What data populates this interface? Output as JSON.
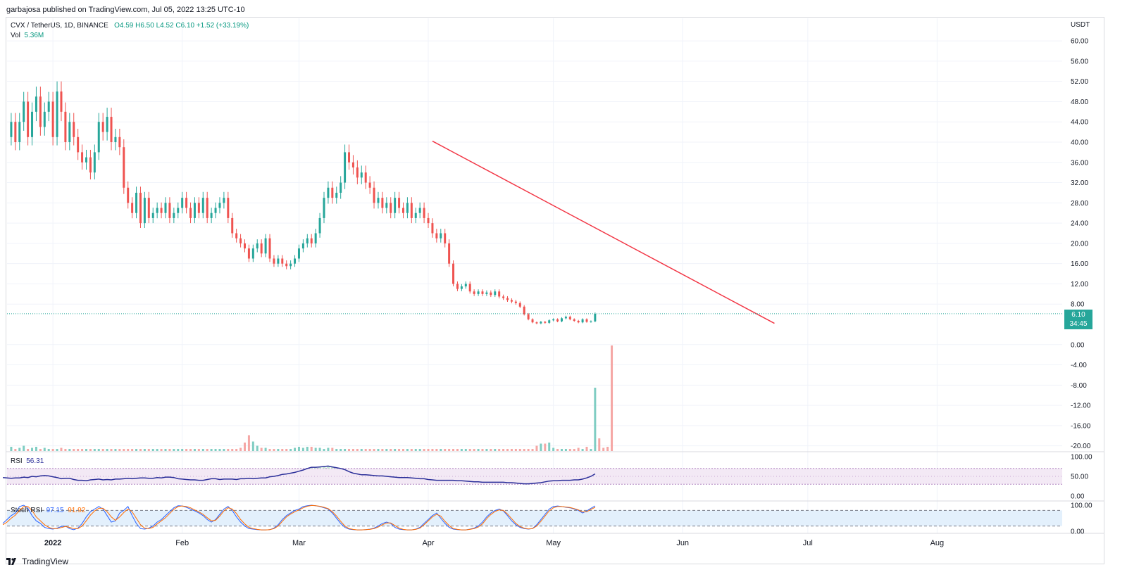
{
  "publish_line": "garbajosa published on TradingView.com, Jul 05, 2022 13:25 UTC-10",
  "legend": {
    "symbol": "CVX / TetherUS, 1D, BINANCE",
    "ohlc": "O4.59  H6.50  L4.52  C6.10  +1.52 (+33.19%)",
    "vol_label": "Vol",
    "vol_value": "5.36M"
  },
  "rsi_legend": {
    "label": "RSI",
    "value": "56.31"
  },
  "srsi_legend": {
    "label": "Stoch RSI",
    "k": "97.15",
    "d": "91.92"
  },
  "price_badge": {
    "price": "6.10",
    "countdown": "34:45"
  },
  "brand": "TradingView",
  "colors": {
    "up": "#26a69a",
    "down": "#ef5350",
    "trendline": "#f23645",
    "rsi": "#2a2e99",
    "stoch_k": "#2962ff",
    "stoch_d": "#ff6d00"
  },
  "chart_data": [
    {
      "type": "candlestick",
      "title": "CVX / TetherUS, 1D, BINANCE",
      "yunit": "USDT",
      "y_ticks": [
        "60.00",
        "56.00",
        "52.00",
        "48.00",
        "44.00",
        "40.00",
        "36.00",
        "32.00",
        "28.00",
        "24.00",
        "20.00",
        "16.00",
        "12.00",
        "8.00",
        "0.00",
        "-4.00",
        "-8.00",
        "-12.00",
        "-16.00",
        "-20.00"
      ],
      "ylim": [
        -20,
        64
      ],
      "x_ticks": [
        "2022",
        "Feb",
        "Mar",
        "Apr",
        "May",
        "Jun",
        "Jul",
        "Aug"
      ],
      "x_range": [
        "2021-12-21",
        "2022-08-31"
      ],
      "start_date": "2021-12-22",
      "closes": [
        44,
        40,
        44,
        48,
        41,
        46,
        49,
        43,
        46,
        48,
        41,
        50,
        46,
        40,
        44,
        41,
        38,
        36,
        37,
        34,
        38,
        44,
        42,
        45,
        40,
        41,
        39,
        31,
        28,
        26,
        30,
        24,
        29,
        25,
        26,
        27,
        26,
        28,
        25,
        26,
        27,
        29,
        27,
        25,
        28,
        26,
        29,
        25,
        26,
        27,
        28,
        29,
        25,
        22,
        21,
        20,
        19,
        17,
        19,
        20,
        18,
        21,
        17,
        16,
        17,
        16,
        15.5,
        16,
        17,
        19,
        20,
        21,
        20,
        22,
        25,
        29,
        31,
        29,
        30,
        32,
        38,
        36,
        35,
        33,
        34,
        32,
        31,
        28,
        29,
        27,
        28,
        26,
        29,
        27,
        26,
        28,
        25,
        26,
        27,
        25,
        24,
        22,
        21,
        22,
        20,
        16,
        12,
        11,
        11.5,
        12,
        10.5,
        10,
        10.5,
        10,
        10.3,
        9.8,
        10.5,
        9.5,
        9.2,
        8.8,
        8.5,
        8.2,
        7.5,
        6,
        5,
        4.4,
        4.2,
        4.5,
        4.3,
        4.8,
        5,
        4.6,
        5.2,
        5.5,
        5,
        4.7,
        4.4,
        5,
        4.5,
        4.6,
        6.1
      ],
      "trendline": [
        {
          "date": "2022-04-02",
          "price": 40.2
        },
        {
          "date": "2022-06-23",
          "price": 4.2
        }
      ],
      "last_price": "6.10"
    },
    {
      "type": "bar",
      "title": "Vol",
      "unit": "relative volume",
      "note": "volume bars share the x axis; values relative to the largest bar (= 1.0)",
      "values": [
        0.04,
        0.02,
        0.03,
        0.05,
        0.02,
        0.03,
        0.04,
        0.02,
        0.03,
        0.02,
        0.02,
        0.02,
        0.03,
        0.02,
        0.02,
        0.02,
        0.02,
        0.02,
        0.02,
        0.02,
        0.02,
        0.02,
        0.02,
        0.02,
        0.02,
        0.02,
        0.02,
        0.02,
        0.02,
        0.02,
        0.02,
        0.02,
        0.02,
        0.02,
        0.02,
        0.02,
        0.02,
        0.02,
        0.02,
        0.02,
        0.02,
        0.02,
        0.02,
        0.02,
        0.02,
        0.02,
        0.02,
        0.02,
        0.02,
        0.02,
        0.02,
        0.02,
        0.02,
        0.02,
        0.02,
        0.03,
        0.08,
        0.15,
        0.09,
        0.05,
        0.03,
        0.03,
        0.02,
        0.02,
        0.02,
        0.02,
        0.02,
        0.02,
        0.03,
        0.04,
        0.03,
        0.04,
        0.04,
        0.03,
        0.03,
        0.02,
        0.03,
        0.03,
        0.02,
        0.02,
        0.02,
        0.02,
        0.02,
        0.02,
        0.02,
        0.02,
        0.02,
        0.02,
        0.02,
        0.02,
        0.02,
        0.02,
        0.02,
        0.02,
        0.02,
        0.02,
        0.02,
        0.02,
        0.02,
        0.02,
        0.02,
        0.02,
        0.02,
        0.02,
        0.02,
        0.02,
        0.02,
        0.02,
        0.02,
        0.02,
        0.02,
        0.02,
        0.02,
        0.02,
        0.02,
        0.02,
        0.02,
        0.02,
        0.02,
        0.02,
        0.02,
        0.02,
        0.02,
        0.02,
        0.02,
        0.02,
        0.05,
        0.07,
        0.07,
        0.08,
        0.03,
        0.02,
        0.02,
        0.02,
        0.02,
        0.02,
        0.03,
        0.02,
        0.04,
        0.02,
        0.6,
        0.12,
        0.03,
        0.04,
        1.0
      ]
    },
    {
      "type": "line",
      "title": "RSI",
      "y_ticks": [
        "100.00",
        "50.00",
        "0.00"
      ],
      "ylim": [
        0,
        100
      ],
      "bands": [
        30,
        70
      ],
      "values": [
        47,
        46,
        45,
        46,
        46,
        48,
        47,
        50,
        49,
        51,
        52,
        51,
        49,
        47,
        44,
        45,
        45,
        42,
        40,
        40,
        39,
        41,
        42,
        43,
        41,
        42,
        41,
        43,
        43,
        44,
        45,
        44,
        45,
        46,
        46,
        45,
        45,
        47,
        46,
        48,
        48,
        47,
        44,
        43,
        42,
        41,
        41,
        40,
        40,
        42,
        44,
        44,
        42,
        43,
        43,
        43,
        42,
        44,
        44,
        45,
        44,
        45,
        46,
        46,
        49,
        50,
        52,
        55,
        56,
        58,
        60,
        63,
        66,
        70,
        73,
        73,
        74,
        75,
        76,
        74,
        72,
        70,
        67,
        62,
        58,
        56,
        54,
        54,
        53,
        52,
        51,
        51,
        50,
        49,
        48,
        47,
        47,
        47,
        46,
        45,
        44,
        44,
        42,
        41,
        40,
        40,
        40,
        40,
        40,
        39,
        39,
        38,
        37,
        36,
        36,
        35,
        35,
        35,
        35,
        35,
        35,
        34,
        34,
        33,
        32,
        31,
        31,
        32,
        33,
        34,
        36,
        38,
        39,
        39,
        40,
        40,
        40,
        41,
        41,
        43,
        46,
        50,
        56.31
      ]
    },
    {
      "type": "line",
      "title": "Stoch RSI",
      "y_ticks": [
        "100.00",
        "0.00"
      ],
      "ylim": [
        0,
        100
      ],
      "bands": [
        20,
        80
      ],
      "series": [
        {
          "name": "K",
          "values": [
            30,
            45,
            60,
            70,
            95,
            100,
            88,
            60,
            40,
            30,
            15,
            10,
            8,
            12,
            18,
            20,
            10,
            6,
            12,
            30,
            55,
            75,
            85,
            95,
            85,
            60,
            35,
            40,
            70,
            80,
            95,
            60,
            30,
            10,
            8,
            12,
            20,
            35,
            45,
            60,
            75,
            90,
            98,
            97,
            92,
            85,
            78,
            70,
            60,
            45,
            35,
            45,
            65,
            85,
            95,
            80,
            55,
            35,
            20,
            10,
            8,
            6,
            5,
            5,
            6,
            12,
            25,
            45,
            60,
            70,
            80,
            85,
            95,
            98,
            100,
            98,
            95,
            90,
            85,
            70,
            50,
            30,
            15,
            8,
            6,
            5,
            5,
            6,
            8,
            12,
            20,
            30,
            35,
            30,
            15,
            8,
            6,
            5,
            5,
            8,
            15,
            30,
            45,
            60,
            70,
            50,
            30,
            15,
            8,
            6,
            5,
            5,
            8,
            12,
            20,
            35,
            55,
            70,
            80,
            85,
            78,
            60,
            40,
            25,
            15,
            10,
            8,
            10,
            25,
            45,
            65,
            85,
            95,
            97,
            95,
            92,
            90,
            85,
            80,
            70,
            78,
            88,
            97.15
          ]
        },
        {
          "name": "D",
          "values": [
            25,
            35,
            50,
            62,
            80,
            95,
            95,
            80,
            55,
            40,
            25,
            15,
            10,
            10,
            14,
            18,
            15,
            10,
            10,
            20,
            40,
            62,
            78,
            88,
            88,
            75,
            55,
            42,
            55,
            72,
            85,
            75,
            50,
            25,
            12,
            10,
            15,
            28,
            40,
            52,
            68,
            84,
            95,
            97,
            95,
            90,
            82,
            74,
            65,
            52,
            40,
            42,
            58,
            78,
            90,
            85,
            68,
            45,
            28,
            15,
            10,
            7,
            5,
            5,
            6,
            10,
            20,
            38,
            55,
            66,
            75,
            82,
            90,
            96,
            99,
            98,
            96,
            92,
            87,
            75,
            58,
            38,
            20,
            10,
            7,
            5,
            5,
            6,
            7,
            10,
            16,
            25,
            32,
            32,
            22,
            12,
            7,
            5,
            5,
            7,
            12,
            25,
            40,
            55,
            65,
            58,
            38,
            22,
            10,
            7,
            5,
            5,
            7,
            10,
            16,
            28,
            48,
            64,
            76,
            82,
            80,
            66,
            48,
            30,
            18,
            12,
            9,
            10,
            20,
            38,
            58,
            78,
            90,
            95,
            95,
            93,
            91,
            87,
            82,
            74,
            75,
            84,
            91.92
          ]
        }
      ]
    }
  ]
}
